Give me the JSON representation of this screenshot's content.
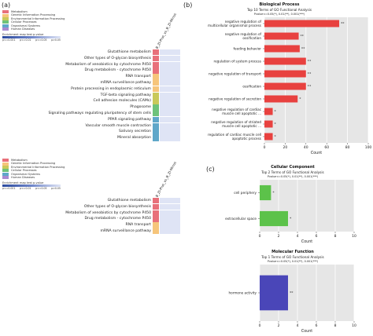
{
  "panel_labels": {
    "a": "(a)",
    "b": "(b)",
    "c": "(c)"
  },
  "colors": {
    "metabolism": "#e8707a",
    "genetic": "#f6c57b",
    "environmental": "#c9c95a",
    "cellular": "#6ec27a",
    "organismal": "#5fa7c9",
    "human_disease": "#a98ad1",
    "heat_low": "#dfe4f5",
    "go_bp": "#e8413f",
    "go_cc": "#5cc24a",
    "go_mf": "#4a46b8",
    "plot_bg": "#e6e6e6"
  },
  "heatmap_top": {
    "legend": [
      {
        "label": "Metabolism",
        "color_key": "metabolism"
      },
      {
        "label": "Genetic Information Processing",
        "color_key": "genetic"
      },
      {
        "label": "Environmental Information Processing",
        "color_key": "environmental"
      },
      {
        "label": "Cellular Processes",
        "color_key": "cellular"
      },
      {
        "label": "Organismal Systems",
        "color_key": "organismal"
      },
      {
        "label": "Human Diseases",
        "color_key": "human_disease"
      }
    ],
    "key_title": "Enrichment map test p-value",
    "key_ticks": [
      "p<=0.001",
      "p<=0.01",
      "p<=0.05",
      "p>0.05"
    ],
    "column_label": "B_ZI-Plus_vs_B_ZI-Minus",
    "rows": [
      {
        "term": "Glutathione metabolism",
        "category": "metabolism"
      },
      {
        "term": "Other types of O-glycan biosynthesis",
        "category": "metabolism"
      },
      {
        "term": "Metabolism of xenobiotics by cytochrome P450",
        "category": "metabolism"
      },
      {
        "term": "Drug metabolism - cytochrome P450",
        "category": "metabolism"
      },
      {
        "term": "RNA transport",
        "category": "genetic"
      },
      {
        "term": "mRNA surveillance pathway",
        "category": "genetic"
      },
      {
        "term": "Protein processing in endoplasmic reticulum",
        "category": "genetic"
      },
      {
        "term": "TGF-beta signaling pathway",
        "category": "environmental"
      },
      {
        "term": "Cell adhesion molecules (CAMs)",
        "category": "environmental"
      },
      {
        "term": "Phagosome",
        "category": "cellular"
      },
      {
        "term": "Signaling pathways regulating pluripotency of stem cells",
        "category": "cellular"
      },
      {
        "term": "PPAR signaling pathway",
        "category": "organismal"
      },
      {
        "term": "Vascular smooth muscle contraction",
        "category": "organismal"
      },
      {
        "term": "Salivary secretion",
        "category": "organismal"
      },
      {
        "term": "Mineral absorption",
        "category": "organismal"
      }
    ]
  },
  "heatmap_bottom": {
    "legend": [
      {
        "label": "Metabolism",
        "color_key": "metabolism"
      },
      {
        "label": "Genetic Information Processing",
        "color_key": "genetic"
      },
      {
        "label": "Environmental Information Processing",
        "color_key": "environmental"
      },
      {
        "label": "Cellular Processes",
        "color_key": "cellular"
      },
      {
        "label": "Organismal Systems",
        "color_key": "organismal"
      },
      {
        "label": "Human Diseases",
        "color_key": "human_disease"
      }
    ],
    "key_title": "Enrichment map test p-value",
    "key_ticks": [
      "p<=0.001",
      "p<=0.01",
      "p<=0.05",
      "p>0.05"
    ],
    "column_label": "B_ZI-Plus_vs_B_ZI-Minus",
    "rows": [
      {
        "term": "Glutathione metabolism",
        "category": "metabolism"
      },
      {
        "term": "Other types of O-glycan biosynthesis",
        "category": "metabolism"
      },
      {
        "term": "Metabolism of xenobiotics by cytochrome P450",
        "category": "metabolism"
      },
      {
        "term": "Drug metabolism - cytochrome P450",
        "category": "metabolism"
      },
      {
        "term": "RNA transport",
        "category": "genetic"
      },
      {
        "term": "mRNA surveillance pathway",
        "category": "genetic"
      }
    ]
  },
  "chart_data": [
    {
      "type": "bar",
      "orientation": "horizontal",
      "title": "Biological Process",
      "subtitle": "Top 10 Terms of GO Functional Analysis",
      "pvalue_note": "Pvalue<=0.05(*), 0.01(**), 0.001(***)",
      "xlabel": "Count",
      "xlim": [
        0,
        100
      ],
      "xticks": [
        0,
        20,
        40,
        60,
        80,
        100
      ],
      "grid": true,
      "color_key": "go_bp",
      "categories": [
        "negative regulation of multicellular organismal process",
        "negative regulation of ossification",
        "feeding behavior",
        "regulation of system process",
        "negative regulation of transport",
        "ossification",
        "negative regulation of secretion",
        "negative regulation of cardiac muscle cell apoptotic ...",
        "negative regulation of striated muscle cell apoptotic ...",
        "regulation of cardiac muscle cell apoptotic process"
      ],
      "values": [
        72,
        33,
        34,
        40,
        40,
        40,
        32,
        8,
        8,
        8
      ],
      "significance": [
        "**",
        "**",
        "**",
        "**",
        "**",
        "**",
        "*",
        "*",
        "*",
        "*"
      ]
    },
    {
      "type": "bar",
      "orientation": "horizontal",
      "title": "Cellular Component",
      "subtitle": "Top 2 Terms of GO Functional Analysis",
      "pvalue_note": "Pvalue<=0.05(*), 0.01(**), 0.001(***)",
      "xlabel": "Count",
      "xlim": [
        0,
        10
      ],
      "xticks": [
        0,
        2,
        4,
        6,
        8,
        10
      ],
      "grid": true,
      "color_key": "go_cc",
      "categories": [
        "cell periphery",
        "extracellular space"
      ],
      "values": [
        1.2,
        3.0
      ],
      "significance": [
        "*",
        "*"
      ]
    },
    {
      "type": "bar",
      "orientation": "horizontal",
      "title": "Molecular Function",
      "subtitle": "Top 1 Terms of GO Functional Analysis",
      "pvalue_note": "Pvalue<=0.05(*), 0.01(**), 0.001(***)",
      "xlabel": "Count",
      "xlim": [
        0,
        10
      ],
      "xticks": [
        0,
        2,
        4,
        6,
        8,
        10
      ],
      "grid": true,
      "color_key": "go_mf",
      "categories": [
        "hormone activity"
      ],
      "values": [
        3.0
      ],
      "significance": [
        "**"
      ]
    }
  ]
}
